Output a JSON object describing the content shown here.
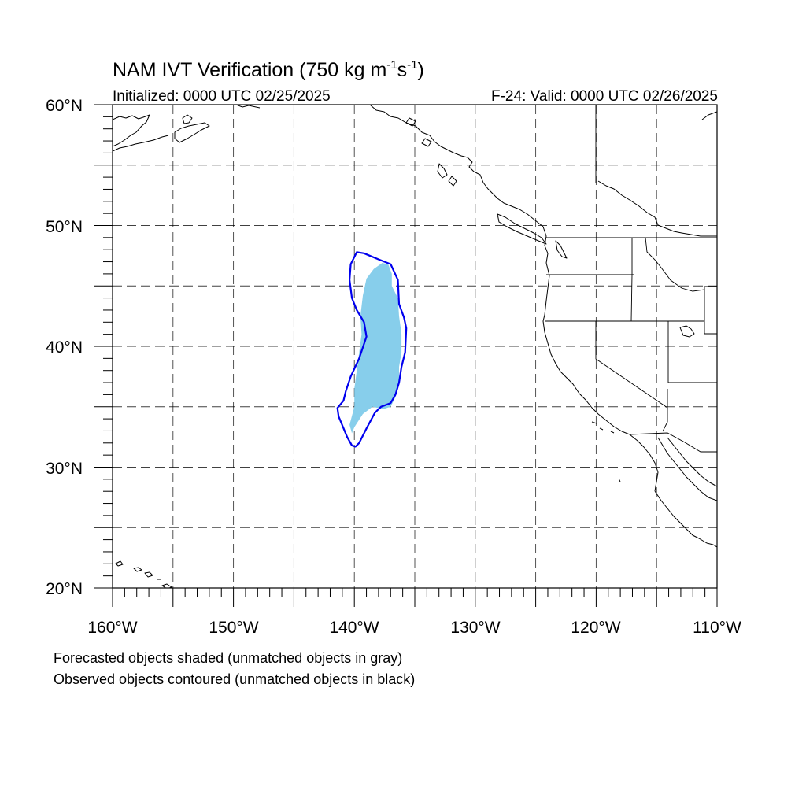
{
  "figure": {
    "title_main": "NAM IVT Verification (750 kg m",
    "title_sup1": "-1",
    "title_mid": "s",
    "title_sup2": "-1",
    "title_end": ")",
    "init_label": "Initialized: 0000 UTC 02/25/2025",
    "valid_label": "F-24: Valid: 0000 UTC 02/26/2025",
    "legend_line1": "Forecasted objects shaded (unmatched objects in gray)",
    "legend_line2": "Observed objects contoured (unmatched objects in black)"
  },
  "map": {
    "lon_range": [
      -160,
      -110
    ],
    "lat_range": [
      20,
      60
    ],
    "grid_interval_deg": 5,
    "lon_tick_labels": [
      "160°W",
      "150°W",
      "140°W",
      "130°W",
      "120°W",
      "110°W"
    ],
    "lat_tick_labels": [
      "20°N",
      "30°N",
      "40°N",
      "50°N",
      "60°N"
    ]
  },
  "objects": {
    "forecast_object_color": "#87ceeb",
    "observed_contour_color": "#0000ee",
    "forecast_shaded": [
      [
        -139.3,
        44.2
      ],
      [
        -139.0,
        45.6
      ],
      [
        -138.4,
        46.4
      ],
      [
        -137.7,
        46.9
      ],
      [
        -137.2,
        46.8
      ],
      [
        -136.9,
        46.0
      ],
      [
        -136.9,
        45.0
      ],
      [
        -136.4,
        44.0
      ],
      [
        -136.3,
        42.5
      ],
      [
        -136.1,
        41.0
      ],
      [
        -136.1,
        39.5
      ],
      [
        -136.3,
        38.3
      ],
      [
        -136.3,
        37.0
      ],
      [
        -136.6,
        35.8
      ],
      [
        -137.0,
        35.0
      ],
      [
        -137.6,
        34.8
      ],
      [
        -138.5,
        35.0
      ],
      [
        -139.3,
        34.4
      ],
      [
        -140.0,
        33.3
      ],
      [
        -140.2,
        32.8
      ],
      [
        -140.4,
        33.5
      ],
      [
        -140.0,
        35.0
      ],
      [
        -140.0,
        36.5
      ],
      [
        -139.8,
        38.0
      ],
      [
        -139.6,
        39.5
      ],
      [
        -139.4,
        41.0
      ],
      [
        -139.5,
        42.5
      ],
      [
        -139.3,
        44.2
      ]
    ],
    "observed_contour": [
      [
        -139.8,
        47.8
      ],
      [
        -139.2,
        47.7
      ],
      [
        -138.0,
        47.2
      ],
      [
        -137.0,
        46.8
      ],
      [
        -136.4,
        45.5
      ],
      [
        -136.3,
        43.5
      ],
      [
        -135.9,
        42.4
      ],
      [
        -135.7,
        41.5
      ],
      [
        -135.8,
        39.5
      ],
      [
        -136.1,
        38.3
      ],
      [
        -136.3,
        37.0
      ],
      [
        -136.6,
        36.0
      ],
      [
        -137.0,
        35.3
      ],
      [
        -137.8,
        35.0
      ],
      [
        -138.3,
        34.5
      ],
      [
        -139.0,
        33.2
      ],
      [
        -139.6,
        32.0
      ],
      [
        -139.9,
        31.7
      ],
      [
        -140.2,
        31.8
      ],
      [
        -140.6,
        32.5
      ],
      [
        -141.3,
        34.2
      ],
      [
        -141.4,
        34.9
      ],
      [
        -140.9,
        35.5
      ],
      [
        -140.7,
        36.3
      ],
      [
        -140.3,
        37.5
      ],
      [
        -139.6,
        39.0
      ],
      [
        -139.0,
        40.8
      ],
      [
        -139.2,
        42.0
      ],
      [
        -139.8,
        43.0
      ],
      [
        -140.2,
        44.0
      ],
      [
        -140.4,
        45.5
      ],
      [
        -140.3,
        46.8
      ],
      [
        -139.8,
        47.8
      ]
    ]
  }
}
